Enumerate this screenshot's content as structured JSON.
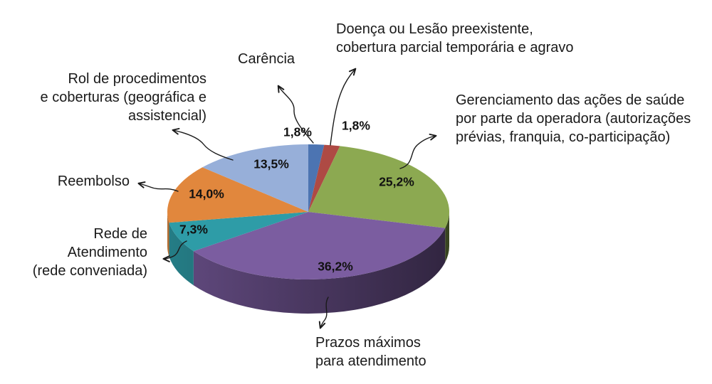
{
  "chart_data": {
    "type": "pie",
    "style": "3d-exploded-none",
    "unit": "%",
    "direction": "clockwise",
    "start_angle_deg": 0,
    "legend_position": "callout-labels",
    "background_color": "#ffffff",
    "slices": [
      {
        "label": "Carência",
        "value": 1.8,
        "pct_label": "1,8%",
        "color": "#4C74B2"
      },
      {
        "label": "Doença ou Lesão preexistente,\ncobertura parcial temporária e agravo",
        "value": 1.8,
        "pct_label": "1,8%",
        "color": "#AE4A44"
      },
      {
        "label": "Gerenciamento das ações de saúde\npor parte da operadora (autorizações\nprévias, franquia, co-participação)",
        "value": 25.2,
        "pct_label": "25,2%",
        "color": "#8CA951"
      },
      {
        "label": "Prazos máximos\npara atendimento",
        "value": 36.2,
        "pct_label": "36,2%",
        "color": "#7B5DA0"
      },
      {
        "label": "Rede de\nAtendimento\n(rede conveniada)",
        "value": 7.3,
        "pct_label": "7,3%",
        "color": "#2E9CA7"
      },
      {
        "label": "Reembolso",
        "value": 14.0,
        "pct_label": "14,0%",
        "color": "#E1873D"
      },
      {
        "label": "Rol de procedimentos\ne coberturas (geográfica e\nassistencial)",
        "value": 13.5,
        "pct_label": "13,5%",
        "color": "#97AFD9"
      }
    ]
  }
}
